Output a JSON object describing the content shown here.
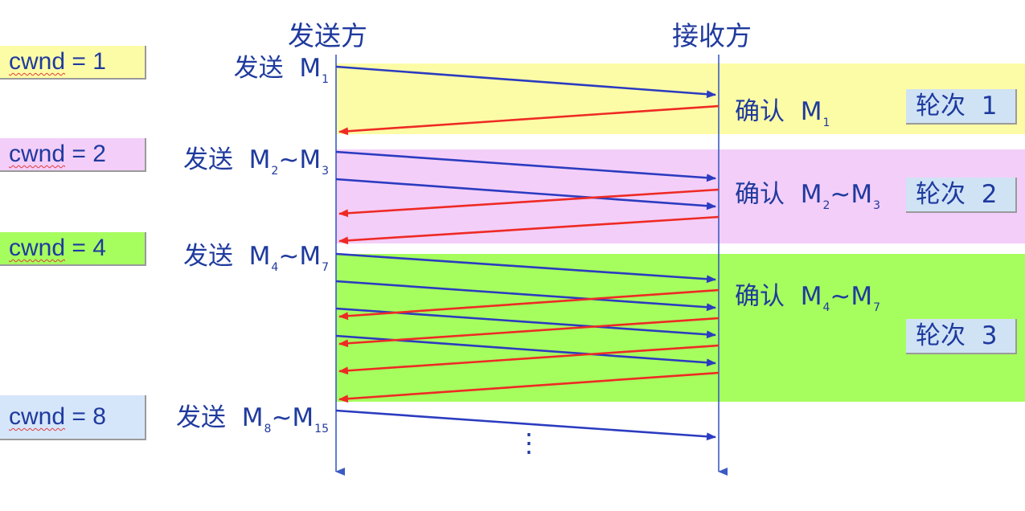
{
  "headers": {
    "sender": "发送方",
    "receiver": "接收方"
  },
  "cwnd": [
    {
      "key": "cwnd",
      "value": " = 1"
    },
    {
      "key": "cwnd",
      "value": " = 2"
    },
    {
      "key": "cwnd",
      "value": " = 4"
    },
    {
      "key": "cwnd",
      "value": " = 8"
    }
  ],
  "send_labels": [
    {
      "verb": "发送",
      "parts": [
        "M",
        "1"
      ]
    },
    {
      "verb": "发送",
      "parts": [
        "M",
        "2",
        "~M",
        "3"
      ]
    },
    {
      "verb": "发送",
      "parts": [
        "M",
        "4",
        "~M",
        "7"
      ]
    },
    {
      "verb": "发送",
      "parts": [
        "M",
        "8",
        "~M",
        "15"
      ]
    }
  ],
  "ack_labels": [
    {
      "verb": "确认",
      "parts": [
        "M",
        "1"
      ]
    },
    {
      "verb": "确认",
      "parts": [
        "M",
        "2",
        "~M",
        "3"
      ]
    },
    {
      "verb": "确认",
      "parts": [
        "M",
        "4",
        "~M",
        "7"
      ]
    }
  ],
  "rounds": [
    {
      "word": "轮次",
      "num": "1"
    },
    {
      "word": "轮次",
      "num": "2"
    },
    {
      "word": "轮次",
      "num": "3"
    }
  ],
  "ellipsis": "⋮",
  "colors": {
    "round1_band": "#fdfca6",
    "round2_band": "#f3cef9",
    "round3_band": "#a6fd5e",
    "round_box": "#cfe3f5",
    "send_arrow": "#2b3bc0",
    "ack_arrow": "#ee2a24",
    "text": "#1f3a9e",
    "timeline": "#3b5bc4"
  }
}
